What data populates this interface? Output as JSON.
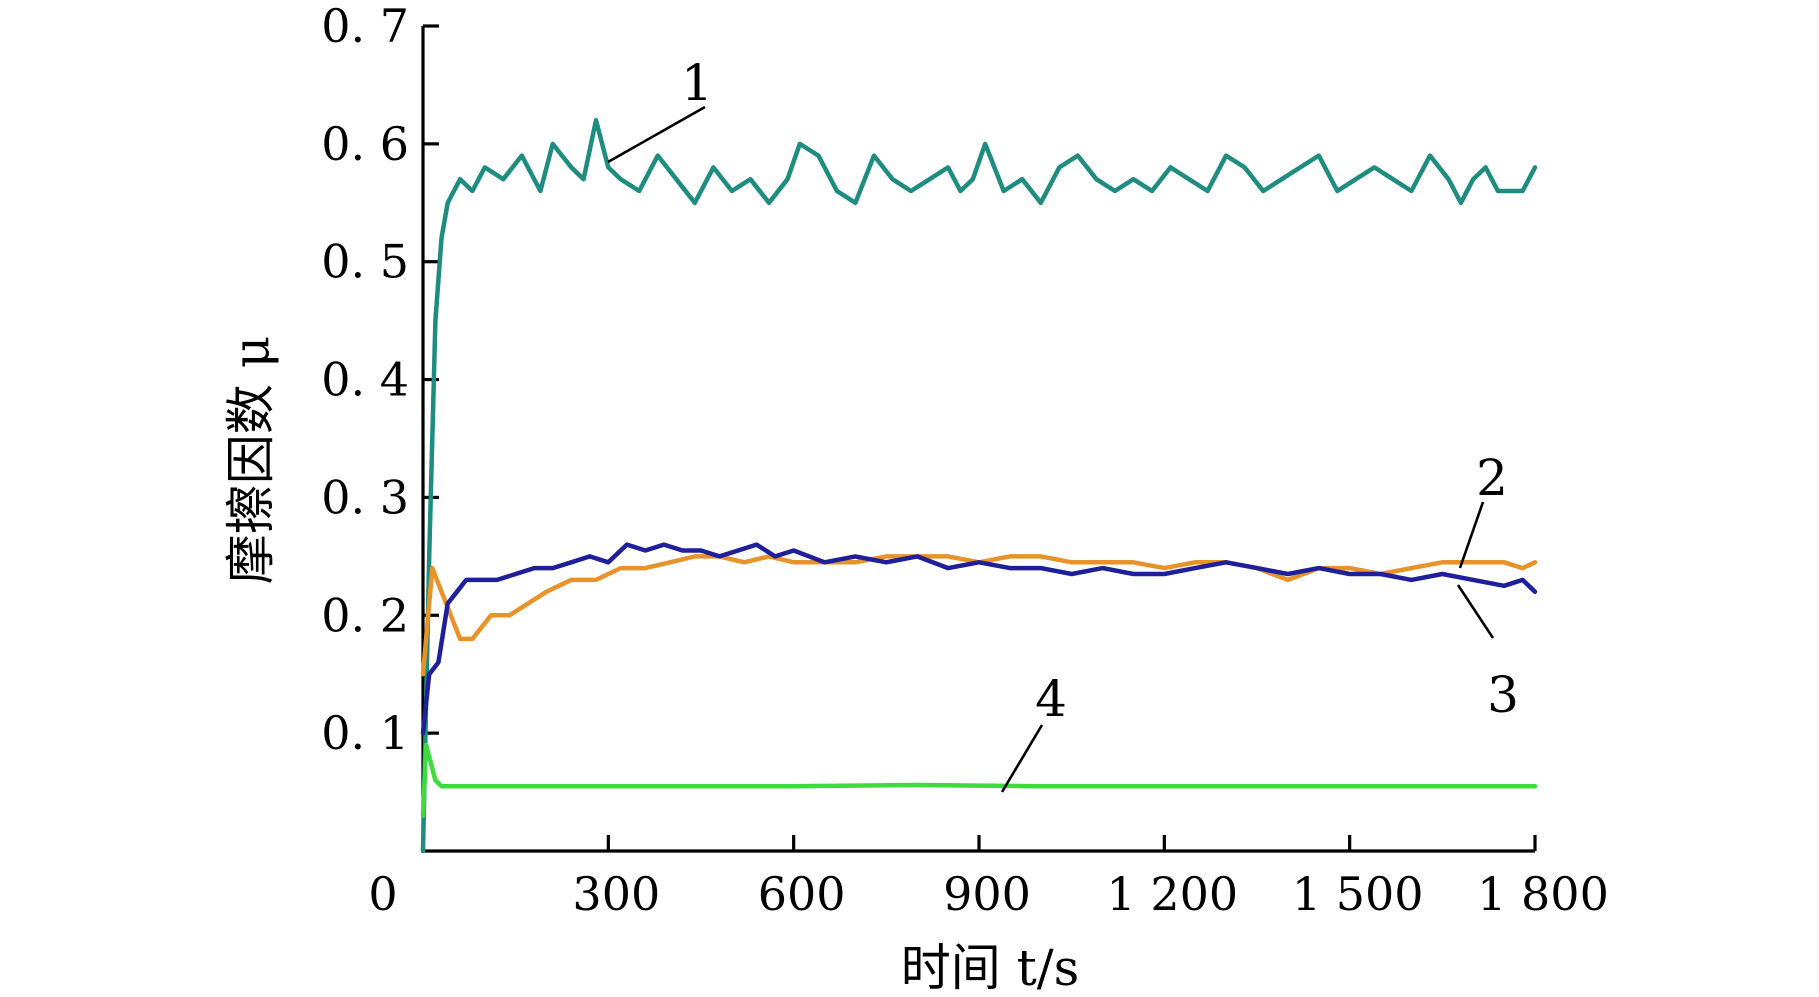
{
  "chart_data": {
    "type": "line",
    "xlabel": "时间 t/s",
    "ylabel": "摩擦因数 μ",
    "xlim": [
      0,
      1800
    ],
    "ylim": [
      0,
      0.7
    ],
    "x_ticks": [
      {
        "value": 0,
        "label": "0"
      },
      {
        "value": 300,
        "label": "300"
      },
      {
        "value": 600,
        "label": "600"
      },
      {
        "value": 900,
        "label": "900"
      },
      {
        "value": 1200,
        "label": "1 200"
      },
      {
        "value": 1500,
        "label": "1 500"
      },
      {
        "value": 1800,
        "label": "1 800"
      }
    ],
    "y_ticks": [
      {
        "value": 0.1,
        "label": "0. 1"
      },
      {
        "value": 0.2,
        "label": "0. 2"
      },
      {
        "value": 0.3,
        "label": "0. 3"
      },
      {
        "value": 0.4,
        "label": "0. 4"
      },
      {
        "value": 0.5,
        "label": "0. 5"
      },
      {
        "value": 0.6,
        "label": "0. 6"
      },
      {
        "value": 0.7,
        "label": "0. 7"
      }
    ],
    "grid": false,
    "legend": "none",
    "series": [
      {
        "label": "1",
        "color": "#1f8c80",
        "x": [
          0,
          10,
          20,
          30,
          40,
          60,
          80,
          100,
          130,
          160,
          190,
          210,
          240,
          260,
          280,
          300,
          320,
          350,
          380,
          410,
          440,
          470,
          500,
          530,
          560,
          590,
          610,
          640,
          670,
          700,
          730,
          760,
          790,
          820,
          850,
          870,
          890,
          910,
          940,
          970,
          1000,
          1030,
          1060,
          1090,
          1120,
          1150,
          1180,
          1210,
          1240,
          1270,
          1300,
          1330,
          1360,
          1390,
          1420,
          1450,
          1480,
          1510,
          1540,
          1570,
          1600,
          1630,
          1660,
          1680,
          1700,
          1720,
          1740,
          1760,
          1780,
          1800
        ],
        "y": [
          0.0,
          0.25,
          0.45,
          0.52,
          0.55,
          0.57,
          0.56,
          0.58,
          0.57,
          0.59,
          0.56,
          0.6,
          0.58,
          0.57,
          0.62,
          0.58,
          0.57,
          0.56,
          0.59,
          0.57,
          0.55,
          0.58,
          0.56,
          0.57,
          0.55,
          0.57,
          0.6,
          0.59,
          0.56,
          0.55,
          0.59,
          0.57,
          0.56,
          0.57,
          0.58,
          0.56,
          0.57,
          0.6,
          0.56,
          0.57,
          0.55,
          0.58,
          0.59,
          0.57,
          0.56,
          0.57,
          0.56,
          0.58,
          0.57,
          0.56,
          0.59,
          0.58,
          0.56,
          0.57,
          0.58,
          0.59,
          0.56,
          0.57,
          0.58,
          0.57,
          0.56,
          0.59,
          0.57,
          0.55,
          0.57,
          0.58,
          0.56,
          0.56,
          0.56,
          0.58
        ]
      },
      {
        "label": "2",
        "color": "#e8922a",
        "x": [
          0,
          15,
          30,
          45,
          60,
          80,
          110,
          140,
          170,
          200,
          240,
          280,
          320,
          360,
          400,
          440,
          480,
          520,
          560,
          600,
          650,
          700,
          750,
          800,
          850,
          900,
          950,
          1000,
          1050,
          1100,
          1150,
          1200,
          1250,
          1300,
          1350,
          1400,
          1450,
          1500,
          1550,
          1600,
          1650,
          1700,
          1750,
          1780,
          1800
        ],
        "y": [
          0.15,
          0.24,
          0.22,
          0.2,
          0.18,
          0.18,
          0.2,
          0.2,
          0.21,
          0.22,
          0.23,
          0.23,
          0.24,
          0.24,
          0.245,
          0.25,
          0.25,
          0.245,
          0.25,
          0.245,
          0.245,
          0.245,
          0.25,
          0.25,
          0.25,
          0.245,
          0.25,
          0.25,
          0.245,
          0.245,
          0.245,
          0.24,
          0.245,
          0.245,
          0.24,
          0.23,
          0.24,
          0.24,
          0.235,
          0.24,
          0.245,
          0.245,
          0.245,
          0.24,
          0.245
        ]
      },
      {
        "label": "3",
        "color": "#1f1f9a",
        "x": [
          0,
          10,
          25,
          40,
          55,
          70,
          90,
          120,
          150,
          180,
          210,
          240,
          270,
          300,
          330,
          360,
          390,
          420,
          450,
          480,
          510,
          540,
          570,
          600,
          650,
          700,
          750,
          800,
          850,
          900,
          950,
          1000,
          1050,
          1100,
          1150,
          1200,
          1250,
          1300,
          1350,
          1400,
          1450,
          1500,
          1550,
          1600,
          1650,
          1700,
          1750,
          1780,
          1800
        ],
        "y": [
          0.1,
          0.15,
          0.16,
          0.21,
          0.22,
          0.23,
          0.23,
          0.23,
          0.235,
          0.24,
          0.24,
          0.245,
          0.25,
          0.245,
          0.26,
          0.255,
          0.26,
          0.255,
          0.255,
          0.25,
          0.255,
          0.26,
          0.25,
          0.255,
          0.245,
          0.25,
          0.245,
          0.25,
          0.24,
          0.245,
          0.24,
          0.24,
          0.235,
          0.24,
          0.235,
          0.235,
          0.24,
          0.245,
          0.24,
          0.235,
          0.24,
          0.235,
          0.235,
          0.23,
          0.235,
          0.23,
          0.225,
          0.23,
          0.22
        ]
      },
      {
        "label": "4",
        "color": "#3ddb3d",
        "x": [
          0,
          5,
          10,
          20,
          30,
          60,
          100,
          200,
          400,
          600,
          800,
          1000,
          1200,
          1400,
          1600,
          1800
        ],
        "y": [
          0.03,
          0.09,
          0.08,
          0.06,
          0.055,
          0.055,
          0.055,
          0.055,
          0.055,
          0.055,
          0.056,
          0.055,
          0.055,
          0.055,
          0.055,
          0.055
        ]
      }
    ]
  }
}
